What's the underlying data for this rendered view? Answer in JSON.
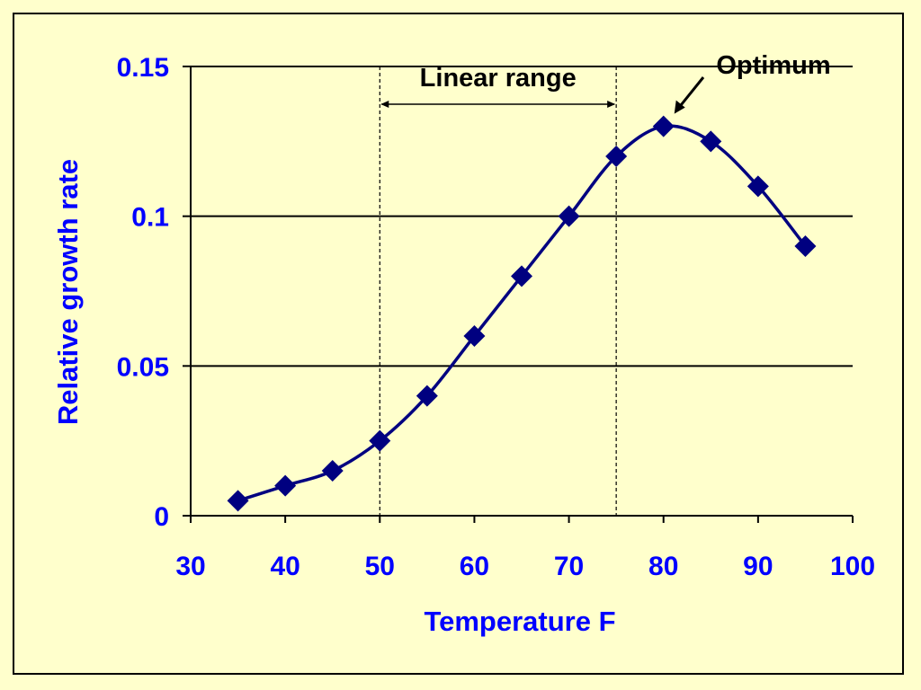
{
  "chart_data": {
    "type": "line",
    "title": "",
    "xlabel": "Temperature F",
    "ylabel": "Relative growth rate",
    "xlim": [
      30,
      100
    ],
    "ylim": [
      0,
      0.15
    ],
    "x_ticks": [
      30,
      40,
      50,
      60,
      70,
      80,
      90,
      100
    ],
    "x_tick_labels": [
      "30",
      "40",
      "50",
      "60",
      "70",
      "80",
      "90",
      "100"
    ],
    "y_ticks": [
      0,
      0.05,
      0.1,
      0.15
    ],
    "y_tick_labels": [
      "0",
      "0.05",
      "0.1",
      "0.15"
    ],
    "grid": "horizontal",
    "legend": "none",
    "series": [
      {
        "x": [
          35,
          40,
          45,
          50,
          55,
          60,
          65,
          70,
          75,
          80,
          85,
          90,
          95
        ],
        "y": [
          0.005,
          0.01,
          0.015,
          0.025,
          0.04,
          0.06,
          0.08,
          0.1,
          0.12,
          0.13,
          0.125,
          0.11,
          0.09
        ],
        "color": "#000080",
        "marker": "diamond"
      }
    ],
    "annotations": {
      "linear_range": {
        "label": "Linear range",
        "x_start": 50,
        "x_end": 75
      },
      "optimum": {
        "label": "Optimum",
        "x": 80,
        "y": 0.13
      }
    },
    "colors": {
      "background": "#ffffcc",
      "axis_text": "#0000ff",
      "series": "#000080",
      "grid": "#000000"
    }
  }
}
